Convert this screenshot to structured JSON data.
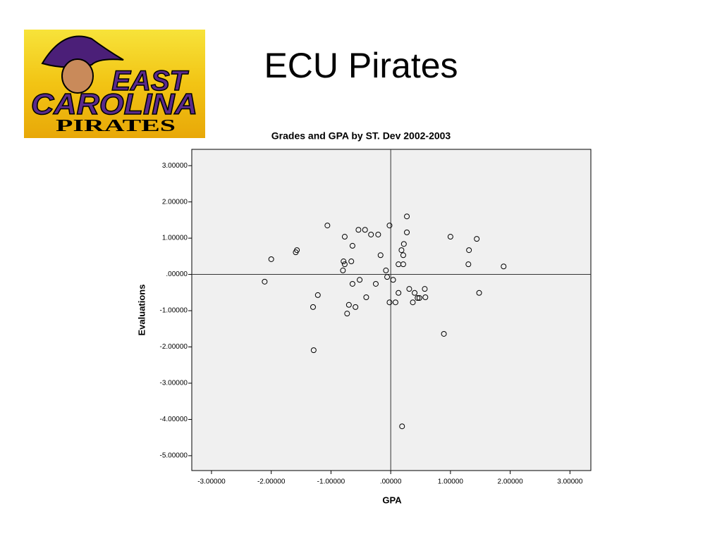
{
  "slide": {
    "title": "ECU Pirates",
    "logo": {
      "line1": "EAST",
      "line2": "CAROLINA",
      "line3": "PIRATES"
    }
  },
  "chart_data": {
    "type": "scatter",
    "title": "Grades and GPA by ST. Dev 2002-2003",
    "x_label": "GPA",
    "y_label": "Evaluations",
    "x": [
      -2.11,
      -2.0,
      -1.59,
      -1.57,
      -1.3,
      -1.29,
      -1.22,
      -1.06,
      -0.8,
      -0.79,
      -0.77,
      -0.77,
      -0.73,
      -0.7,
      -0.66,
      -0.64,
      -0.64,
      -0.59,
      -0.54,
      -0.52,
      -0.43,
      -0.41,
      -0.33,
      -0.25,
      -0.21,
      -0.17,
      -0.08,
      -0.06,
      -0.02,
      -0.02,
      0.04,
      0.08,
      0.13,
      0.13,
      0.18,
      0.19,
      0.21,
      0.21,
      0.22,
      0.27,
      0.27,
      0.31,
      0.37,
      0.4,
      0.45,
      0.48,
      0.57,
      0.58,
      0.89,
      1.0,
      1.3,
      1.31,
      1.44,
      1.48,
      1.89
    ],
    "values": [
      -0.2,
      0.42,
      0.61,
      0.67,
      -0.9,
      -2.09,
      -0.57,
      1.35,
      0.11,
      0.36,
      0.28,
      1.04,
      -1.08,
      -0.84,
      0.36,
      0.79,
      -0.26,
      -0.9,
      1.23,
      -0.15,
      1.23,
      -0.63,
      1.1,
      -0.26,
      1.1,
      0.53,
      0.11,
      -0.07,
      1.35,
      -0.77,
      -0.15,
      -0.77,
      0.28,
      -0.51,
      0.67,
      -4.19,
      0.53,
      0.28,
      0.84,
      1.16,
      1.6,
      -0.4,
      -0.77,
      -0.51,
      -0.65,
      -0.65,
      -0.4,
      -0.63,
      -1.64,
      1.04,
      0.28,
      0.67,
      0.98,
      -0.51,
      0.22
    ],
    "color": "#000000",
    "background": "#f0f0f0",
    "xlim": [
      -3.33,
      3.35
    ],
    "ylim": [
      -5.41,
      3.45
    ],
    "xticks": [
      {
        "value": -3,
        "label": "-3.00000"
      },
      {
        "value": -2,
        "label": "-2.00000"
      },
      {
        "value": -1,
        "label": "-1.00000"
      },
      {
        "value": 0,
        "label": ".00000"
      },
      {
        "value": 1,
        "label": "1.00000"
      },
      {
        "value": 2,
        "label": "2.00000"
      },
      {
        "value": 3,
        "label": "3.00000"
      }
    ],
    "yticks": [
      {
        "value": 3,
        "label": "3.00000"
      },
      {
        "value": 2,
        "label": "2.00000"
      },
      {
        "value": 1,
        "label": "1.00000"
      },
      {
        "value": 0,
        "label": ".00000"
      },
      {
        "value": -1,
        "label": "-1.00000"
      },
      {
        "value": -2,
        "label": "-2.00000"
      },
      {
        "value": -3,
        "label": "-3.00000"
      },
      {
        "value": -4,
        "label": "-4.00000"
      },
      {
        "value": -5,
        "label": "-5.00000"
      }
    ],
    "xref": 0,
    "yref": 0
  }
}
